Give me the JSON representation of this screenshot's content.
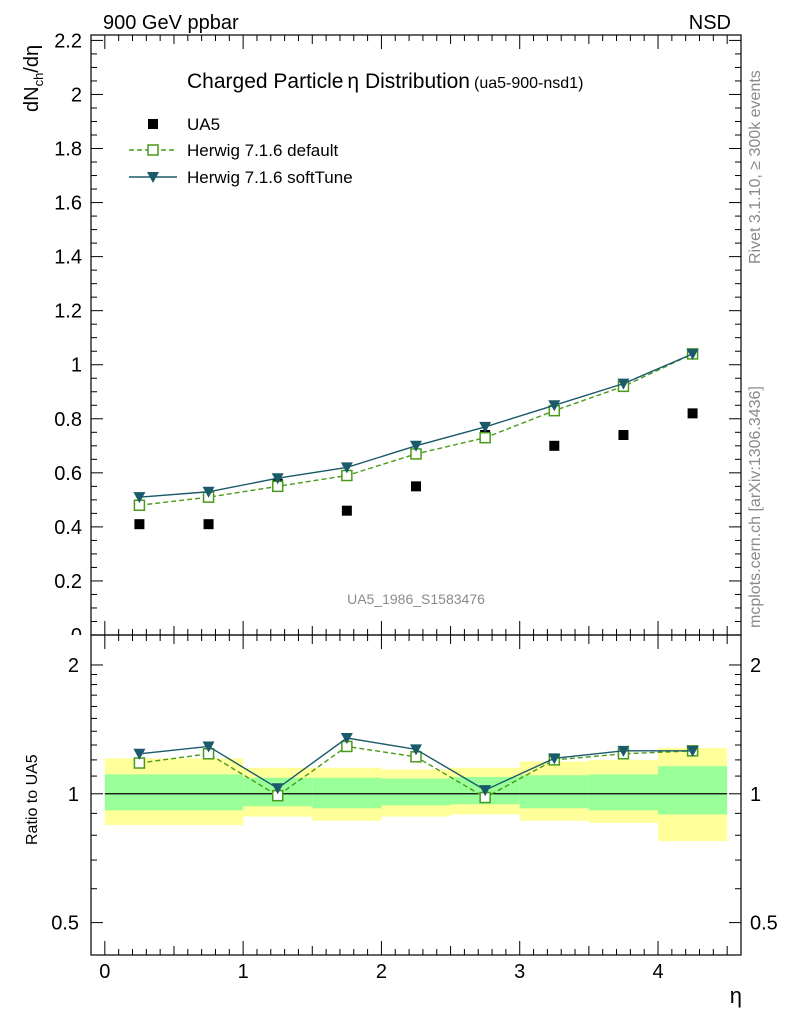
{
  "header": {
    "left": "900 GeV ppbar",
    "right": "NSD"
  },
  "side_labels": {
    "rivet": "Rivet 3.1.10, ≥ 300k events",
    "mcplots": "mcplots.cern.ch [arXiv:1306.3436]"
  },
  "title": {
    "main": "Charged Particle",
    "eta": "η",
    "rest": " Distribution",
    "tag": "(ua5-900-nsd1)"
  },
  "watermark": "UA5_1986_S1583476",
  "chart_data": [
    {
      "type": "scatter",
      "panel": "main",
      "ylabel": {
        "base": "dN",
        "sub": "ch",
        "tail": "/dη"
      },
      "xlim": [
        -0.1,
        4.6
      ],
      "ylim": [
        0,
        2.22
      ],
      "yticks": [
        0.2,
        0.4,
        0.6,
        0.8,
        1.0,
        1.2,
        1.4,
        1.6,
        1.8,
        2.0,
        2.2
      ],
      "ytick_labels": [
        "0.2",
        "0.4",
        "0.6",
        "0.8",
        "1",
        "1.2",
        "1.4",
        "1.6",
        "1.8",
        "2",
        "2.2"
      ],
      "legend_position": "top-left",
      "x": [
        0.25,
        0.75,
        1.25,
        1.75,
        2.25,
        2.75,
        3.25,
        3.75,
        4.25
      ],
      "series": [
        {
          "name": "UA5",
          "color": "#000000",
          "marker": "square-filled",
          "values": [
            0.41,
            0.41,
            0.56,
            0.46,
            0.55,
            0.74,
            0.7,
            0.74,
            0.82
          ]
        },
        {
          "name": "Herwig 7.1.6 default",
          "color": "#4a9a1a",
          "marker": "square-open",
          "line": "dashed",
          "values": [
            0.48,
            0.51,
            0.55,
            0.59,
            0.67,
            0.73,
            0.83,
            0.92,
            1.04
          ]
        },
        {
          "name": "Herwig 7.1.6 softTune",
          "color": "#1a5a6a",
          "marker": "triangle-down",
          "line": "solid",
          "values": [
            0.51,
            0.53,
            0.58,
            0.62,
            0.7,
            0.77,
            0.85,
            0.93,
            1.04
          ]
        }
      ]
    },
    {
      "type": "line",
      "panel": "ratio",
      "ylabel": "Ratio to UA5",
      "xlabel": "η",
      "scale": "log",
      "ylim": [
        0.42,
        2.35
      ],
      "yticks": [
        0.5,
        1,
        2
      ],
      "ytick_labels": [
        "0.5",
        "1",
        "2"
      ],
      "xticks": [
        0,
        1,
        2,
        3,
        4
      ],
      "xtick_labels": [
        "0",
        "1",
        "2",
        "3",
        "4"
      ],
      "x": [
        0.25,
        0.75,
        1.25,
        1.75,
        2.25,
        2.75,
        3.25,
        3.75,
        4.25
      ],
      "bins": [
        [
          0,
          1
        ],
        [
          1,
          1.5
        ],
        [
          1.5,
          2
        ],
        [
          2,
          2.5
        ],
        [
          2.5,
          3
        ],
        [
          3,
          3.5
        ],
        [
          3.5,
          4
        ],
        [
          4,
          4.5
        ]
      ],
      "band_yellow": [
        [
          0.845,
          1.21
        ],
        [
          0.885,
          1.15
        ],
        [
          0.865,
          1.15
        ],
        [
          0.885,
          1.14
        ],
        [
          0.895,
          1.15
        ],
        [
          0.865,
          1.19
        ],
        [
          0.855,
          1.2
        ],
        [
          0.775,
          1.28
        ]
      ],
      "band_green": [
        [
          0.915,
          1.11
        ],
        [
          0.935,
          1.09
        ],
        [
          0.925,
          1.09
        ],
        [
          0.94,
          1.085
        ],
        [
          0.945,
          1.095
        ],
        [
          0.925,
          1.105
        ],
        [
          0.915,
          1.11
        ],
        [
          0.895,
          1.16
        ]
      ],
      "series": [
        {
          "name": "Herwig 7.1.6 default",
          "color": "#4a9a1a",
          "values": [
            1.18,
            1.24,
            0.99,
            1.29,
            1.22,
            0.98,
            1.2,
            1.24,
            1.26
          ]
        },
        {
          "name": "Herwig 7.1.6 softTune",
          "color": "#1a5a6a",
          "values": [
            1.24,
            1.29,
            1.03,
            1.35,
            1.27,
            1.02,
            1.21,
            1.26,
            1.26
          ]
        }
      ]
    }
  ]
}
